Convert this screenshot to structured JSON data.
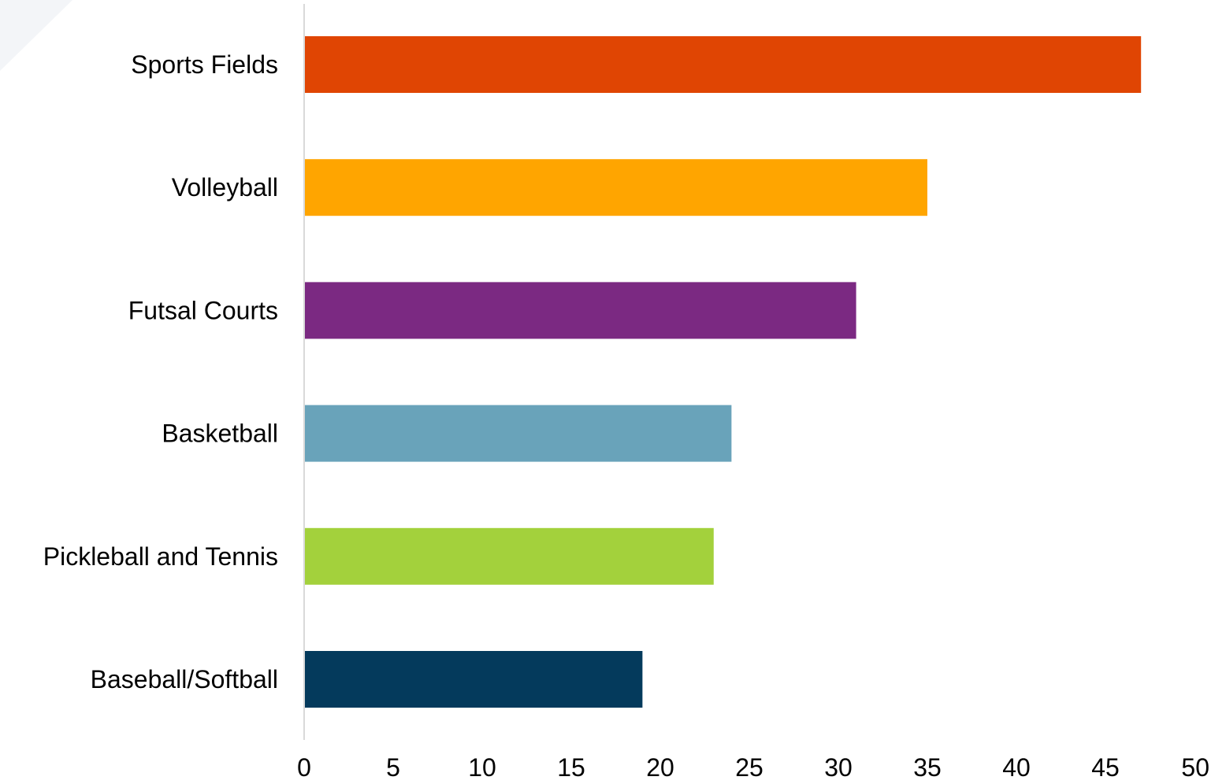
{
  "chart_data": {
    "type": "bar",
    "orientation": "horizontal",
    "title": "",
    "xlabel": "",
    "ylabel": "",
    "categories": [
      "Sports Fields",
      "Volleyball",
      "Futsal Courts",
      "Basketball",
      "Pickleball and Tennis",
      "Baseball/Softball"
    ],
    "values": [
      47,
      35,
      31,
      24,
      23,
      19
    ],
    "colors": [
      "#E04503",
      "#FFA500",
      "#7B2982",
      "#69A3BA",
      "#A3D13C",
      "#043A5C"
    ],
    "xlim": [
      0,
      50
    ],
    "xticks": [
      "0",
      "5",
      "10",
      "15",
      "20",
      "25",
      "30",
      "35",
      "40",
      "45",
      "50"
    ],
    "grid": false,
    "legend": "none"
  }
}
